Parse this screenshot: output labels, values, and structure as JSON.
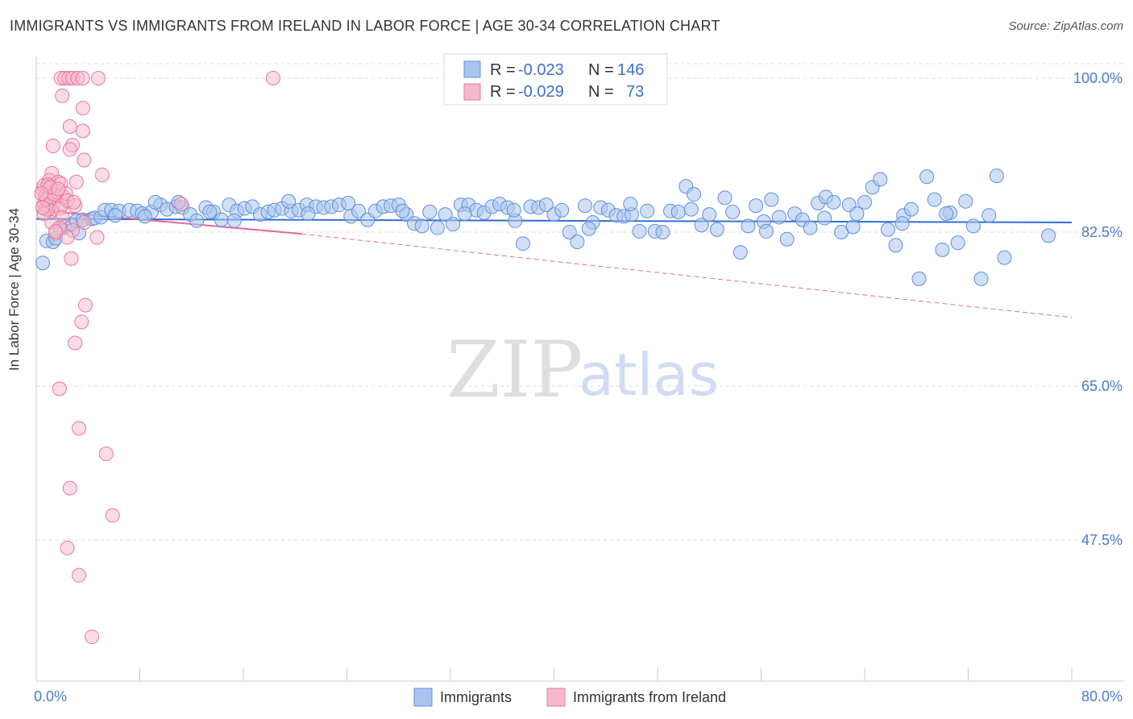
{
  "header": {
    "title": "IMMIGRANTS VS IMMIGRANTS FROM IRELAND IN LABOR FORCE | AGE 30-34 CORRELATION CHART",
    "source": "Source: ZipAtlas.com"
  },
  "watermark": {
    "zip": "ZIP",
    "atlas": "atlas"
  },
  "legend_box": {
    "rows": [
      {
        "r_label": "R =",
        "r_value": "-0.023",
        "n_label": "N =",
        "n_value": "146"
      },
      {
        "r_label": "R =",
        "r_value": "-0.029",
        "n_label": "N =",
        "n_value": "73"
      }
    ]
  },
  "colors": {
    "blue_fill": "#a9c4ef",
    "blue_stroke": "#5f8fdc",
    "blue_line": "#2f6fd1",
    "pink_fill": "#f6b9cc",
    "pink_stroke": "#e8779c",
    "pink_line": "#e8679a",
    "tick_text": "#4a7bd1",
    "grid": "#dddddd"
  },
  "chart_data": {
    "type": "scatter",
    "ylabel": "In Labor Force | Age 30-34",
    "xlabel": "",
    "xlim": [
      0,
      80
    ],
    "ylim": [
      33,
      101.5
    ],
    "y_ticks": [
      {
        "value": 100,
        "label": "100.0%"
      },
      {
        "value": 82.5,
        "label": "82.5%"
      },
      {
        "value": 65,
        "label": "65.0%"
      },
      {
        "value": 47.5,
        "label": "47.5%"
      }
    ],
    "x_tick_labels": [
      {
        "value": 0,
        "label": "0.0%"
      },
      {
        "value": 80,
        "label": "80.0%"
      }
    ],
    "legend_position": "top-center",
    "grid": true,
    "series": [
      {
        "name": "Immigrants",
        "r": -0.023,
        "n": 146,
        "trend": {
          "x": [
            0,
            80
          ],
          "y": [
            84.0,
            83.6
          ]
        },
        "points": [
          [
            0.5,
            79.0
          ],
          [
            0.8,
            81.5
          ],
          [
            1.3,
            81.4
          ],
          [
            1.5,
            81.8
          ],
          [
            2.2,
            83.1
          ],
          [
            2.8,
            83.4
          ],
          [
            3.1,
            83.8
          ],
          [
            3.6,
            83.9
          ],
          [
            4.3,
            84.0
          ],
          [
            4.5,
            84.1
          ],
          [
            5.0,
            84.2
          ],
          [
            5.3,
            85.0
          ],
          [
            5.8,
            85.0
          ],
          [
            6.4,
            84.9
          ],
          [
            7.2,
            85.0
          ],
          [
            7.8,
            84.9
          ],
          [
            8.2,
            84.6
          ],
          [
            8.9,
            84.8
          ],
          [
            9.6,
            85.6
          ],
          [
            10.1,
            85.1
          ],
          [
            10.8,
            85.4
          ],
          [
            11.3,
            85.3
          ],
          [
            11.9,
            84.5
          ],
          [
            12.4,
            83.8
          ],
          [
            13.1,
            85.3
          ],
          [
            13.7,
            84.8
          ],
          [
            14.3,
            83.9
          ],
          [
            14.9,
            85.6
          ],
          [
            15.5,
            84.9
          ],
          [
            16.1,
            85.2
          ],
          [
            16.7,
            85.4
          ],
          [
            17.3,
            84.5
          ],
          [
            17.9,
            84.8
          ],
          [
            18.4,
            85.0
          ],
          [
            19.0,
            85.2
          ],
          [
            19.7,
            84.9
          ],
          [
            20.3,
            85.0
          ],
          [
            20.9,
            85.6
          ],
          [
            21.6,
            85.4
          ],
          [
            22.2,
            85.3
          ],
          [
            22.8,
            85.4
          ],
          [
            23.4,
            85.6
          ],
          [
            24.3,
            84.3
          ],
          [
            24.9,
            84.9
          ],
          [
            25.6,
            83.9
          ],
          [
            26.2,
            84.9
          ],
          [
            26.8,
            85.4
          ],
          [
            27.4,
            85.5
          ],
          [
            28.0,
            85.6
          ],
          [
            28.6,
            84.5
          ],
          [
            29.2,
            83.5
          ],
          [
            29.8,
            83.2
          ],
          [
            30.4,
            84.8
          ],
          [
            31.0,
            83.0
          ],
          [
            31.6,
            84.5
          ],
          [
            32.2,
            83.4
          ],
          [
            32.8,
            85.6
          ],
          [
            33.4,
            85.6
          ],
          [
            34.0,
            85.0
          ],
          [
            34.6,
            84.7
          ],
          [
            35.2,
            85.4
          ],
          [
            35.8,
            85.7
          ],
          [
            36.4,
            85.3
          ],
          [
            37.0,
            83.8
          ],
          [
            37.6,
            81.2
          ],
          [
            38.2,
            85.4
          ],
          [
            38.8,
            85.3
          ],
          [
            39.4,
            85.6
          ],
          [
            40.0,
            84.5
          ],
          [
            40.6,
            85.0
          ],
          [
            41.2,
            82.5
          ],
          [
            41.8,
            81.4
          ],
          [
            42.4,
            85.5
          ],
          [
            43.0,
            83.6
          ],
          [
            43.6,
            85.3
          ],
          [
            44.2,
            85.0
          ],
          [
            44.8,
            84.4
          ],
          [
            45.4,
            84.3
          ],
          [
            46.0,
            84.5
          ],
          [
            46.6,
            82.6
          ],
          [
            47.2,
            84.9
          ],
          [
            47.8,
            82.6
          ],
          [
            48.4,
            82.5
          ],
          [
            49.0,
            84.9
          ],
          [
            49.6,
            84.8
          ],
          [
            50.2,
            87.7
          ],
          [
            50.8,
            86.8
          ],
          [
            51.4,
            83.3
          ],
          [
            52.0,
            84.5
          ],
          [
            52.6,
            82.8
          ],
          [
            53.2,
            86.4
          ],
          [
            53.8,
            84.8
          ],
          [
            54.4,
            80.2
          ],
          [
            55.0,
            83.2
          ],
          [
            55.6,
            85.5
          ],
          [
            56.2,
            83.7
          ],
          [
            56.8,
            86.2
          ],
          [
            57.4,
            84.2
          ],
          [
            58.0,
            81.7
          ],
          [
            58.6,
            84.6
          ],
          [
            59.2,
            83.9
          ],
          [
            59.8,
            83.0
          ],
          [
            60.4,
            85.8
          ],
          [
            61.0,
            86.5
          ],
          [
            61.6,
            85.9
          ],
          [
            62.2,
            82.5
          ],
          [
            62.8,
            85.6
          ],
          [
            63.4,
            84.6
          ],
          [
            64.0,
            85.9
          ],
          [
            64.6,
            87.6
          ],
          [
            65.2,
            88.5
          ],
          [
            65.8,
            82.8
          ],
          [
            66.4,
            81.0
          ],
          [
            67.0,
            84.4
          ],
          [
            67.6,
            85.1
          ],
          [
            68.2,
            77.2
          ],
          [
            68.8,
            88.8
          ],
          [
            69.4,
            86.2
          ],
          [
            70.0,
            80.5
          ],
          [
            70.6,
            84.7
          ],
          [
            71.2,
            81.3
          ],
          [
            71.8,
            86.0
          ],
          [
            72.4,
            83.2
          ],
          [
            73.0,
            77.2
          ],
          [
            73.6,
            84.4
          ],
          [
            74.2,
            88.9
          ],
          [
            74.8,
            79.6
          ],
          [
            78.2,
            82.1
          ],
          [
            9.2,
            85.9
          ],
          [
            11.0,
            85.9
          ],
          [
            13.4,
            84.8
          ],
          [
            19.5,
            86.0
          ],
          [
            24.1,
            85.8
          ],
          [
            28.3,
            84.9
          ],
          [
            33.1,
            84.6
          ],
          [
            36.9,
            85.0
          ],
          [
            42.7,
            82.9
          ],
          [
            45.9,
            85.7
          ],
          [
            50.6,
            85.1
          ],
          [
            56.4,
            82.6
          ],
          [
            60.9,
            84.1
          ],
          [
            63.1,
            83.1
          ],
          [
            66.9,
            83.5
          ],
          [
            70.3,
            84.6
          ],
          [
            1.9,
            82.9
          ],
          [
            3.3,
            82.4
          ],
          [
            6.1,
            84.4
          ],
          [
            8.4,
            84.3
          ],
          [
            15.3,
            83.8
          ],
          [
            21.0,
            84.6
          ]
        ]
      },
      {
        "name": "Immigrants from Ireland",
        "r": -0.029,
        "n": 73,
        "trend": {
          "x": [
            0,
            20.5
          ],
          "y": [
            85.0,
            82.3
          ]
        },
        "trend_dashed": {
          "x": [
            20.5,
            80
          ],
          "y": [
            82.3,
            72.8
          ]
        },
        "points": [
          [
            1.9,
            100.0
          ],
          [
            2.2,
            100.0
          ],
          [
            2.5,
            100.0
          ],
          [
            2.8,
            100.0
          ],
          [
            3.2,
            100.0
          ],
          [
            3.6,
            100.0
          ],
          [
            4.8,
            100.0
          ],
          [
            18.3,
            100.0
          ],
          [
            2.0,
            98.0
          ],
          [
            3.6,
            96.6
          ],
          [
            2.6,
            94.5
          ],
          [
            3.6,
            94.0
          ],
          [
            1.3,
            92.3
          ],
          [
            2.8,
            92.4
          ],
          [
            2.6,
            91.9
          ],
          [
            3.7,
            90.7
          ],
          [
            1.2,
            89.2
          ],
          [
            5.1,
            89.0
          ],
          [
            1.0,
            88.4
          ],
          [
            3.1,
            88.2
          ],
          [
            1.7,
            88.2
          ],
          [
            1.9,
            88.0
          ],
          [
            0.9,
            87.6
          ],
          [
            0.5,
            87.3
          ],
          [
            0.7,
            86.6
          ],
          [
            1.1,
            86.4
          ],
          [
            1.4,
            86.4
          ],
          [
            2.1,
            86.5
          ],
          [
            0.8,
            86.1
          ],
          [
            0.6,
            85.7
          ],
          [
            1.0,
            85.5
          ],
          [
            1.3,
            85.5
          ],
          [
            2.0,
            85.6
          ],
          [
            3.0,
            85.5
          ],
          [
            0.7,
            85.1
          ],
          [
            1.2,
            84.9
          ],
          [
            0.9,
            85.1
          ],
          [
            1.8,
            85.2
          ],
          [
            11.2,
            85.7
          ],
          [
            2.0,
            84.2
          ],
          [
            1.2,
            83.6
          ],
          [
            3.7,
            83.6
          ],
          [
            1.8,
            83.0
          ],
          [
            1.5,
            82.4
          ],
          [
            2.8,
            82.7
          ],
          [
            1.5,
            82.6
          ],
          [
            2.4,
            81.9
          ],
          [
            4.7,
            81.9
          ],
          [
            2.7,
            79.5
          ],
          [
            3.8,
            74.2
          ],
          [
            3.5,
            72.3
          ],
          [
            3.0,
            69.9
          ],
          [
            1.8,
            64.7
          ],
          [
            3.3,
            60.2
          ],
          [
            5.4,
            57.3
          ],
          [
            2.6,
            53.4
          ],
          [
            5.9,
            50.3
          ],
          [
            2.4,
            46.6
          ],
          [
            3.3,
            43.5
          ],
          [
            4.3,
            36.5
          ],
          [
            0.6,
            87.8
          ],
          [
            0.9,
            87.9
          ],
          [
            1.6,
            87.1
          ],
          [
            2.3,
            86.9
          ],
          [
            0.8,
            86.3
          ],
          [
            1.4,
            86.8
          ],
          [
            1.1,
            87.6
          ],
          [
            0.4,
            86.9
          ],
          [
            2.4,
            86.1
          ],
          [
            0.6,
            84.6
          ],
          [
            1.7,
            87.4
          ],
          [
            2.9,
            85.9
          ],
          [
            0.5,
            85.3
          ]
        ]
      }
    ]
  },
  "bottom_legend": [
    {
      "label": "Immigrants"
    },
    {
      "label": "Immigrants from Ireland"
    }
  ]
}
